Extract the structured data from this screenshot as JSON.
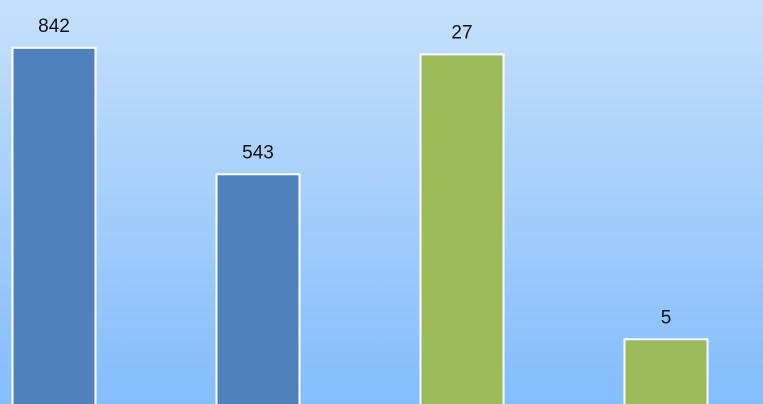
{
  "chart_data": {
    "type": "bar",
    "categories": [
      null,
      null,
      null,
      null
    ],
    "series": [
      {
        "color": "#4f81bd",
        "values": [
          842,
          543,
          null,
          null
        ]
      },
      {
        "color": "#9bbb59",
        "values": [
          null,
          null,
          27,
          5
        ],
        "axis": "y2"
      }
    ],
    "ylim": [
      0,
      955
    ],
    "y2lim": [
      0,
      31.2
    ]
  }
}
